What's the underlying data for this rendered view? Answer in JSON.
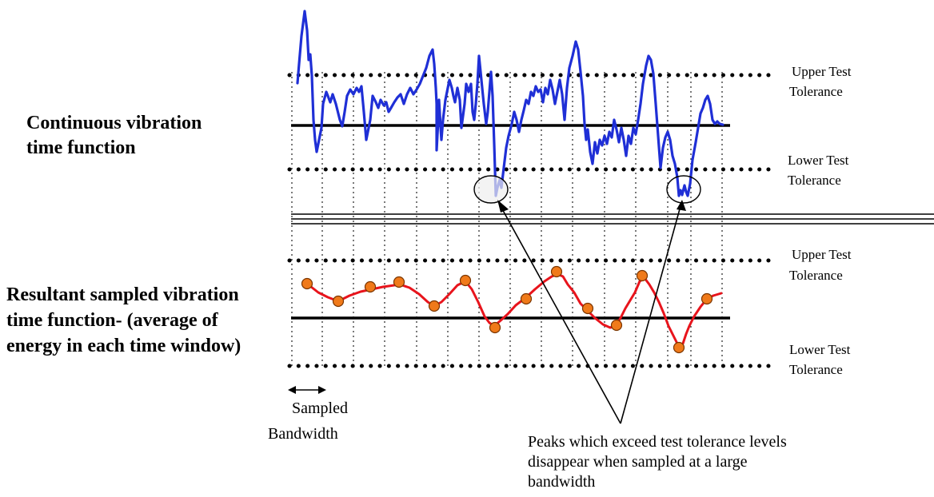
{
  "labels": {
    "continuous_line1": "Continuous vibration",
    "continuous_line2": "time function",
    "sampled_line1": "Resultant sampled vibration",
    "sampled_line2": "time function- (average of",
    "sampled_line3": "energy in each time window)",
    "upper_tol_top_1": "Upper Test",
    "upper_tol_top_2": "Tolerance",
    "lower_tol_top_1": "Lower Test",
    "lower_tol_top_2": "Tolerance",
    "upper_tol_bot_1": "Upper Test",
    "upper_tol_bot_2": "Tolerance",
    "lower_tol_bot_1": "Lower Test",
    "lower_tol_bot_2": "Tolerance",
    "bandwidth_1": "Sampled",
    "bandwidth_2": "Bandwidth",
    "note_1": "Peaks which exceed test tolerance levels",
    "note_2": "disappear when sampled at a large",
    "note_3": "bandwidth"
  },
  "colors": {
    "continuous_signal": "#1f2fd6",
    "sampled_signal": "#e8141c",
    "sample_marker_fill": "#f07a1a",
    "sample_marker_stroke": "#7a3500",
    "highlight_fill": "#eeeeee"
  },
  "icons": {
    "bandwidth_arrow": "double-headed-arrow-icon"
  }
}
